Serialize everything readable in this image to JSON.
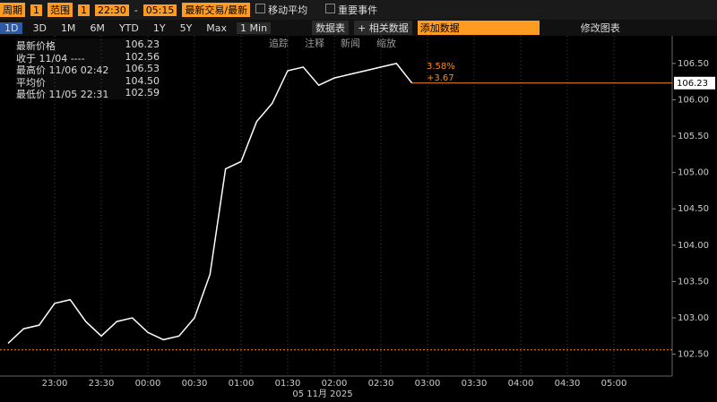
{
  "toolbar": {
    "row1": {
      "period_label": "周期",
      "period_value": "1",
      "range_label": "范围",
      "range_value": "1",
      "start": "22:30",
      "dash": "-",
      "end": "05:15",
      "mode": "最新交易/最新",
      "moving_avg": "移动平均",
      "events": "重要事件"
    },
    "row2": {
      "ranges": [
        "1D",
        "3D",
        "1M",
        "6M",
        "YTD",
        "1Y",
        "5Y",
        "Max"
      ],
      "interval": "1 Min",
      "table": "数据表",
      "related": "+ 相关数据",
      "add_data": "添加数据",
      "edit": "修改图表"
    },
    "row3": [
      "追踪",
      "注释",
      "新闻",
      "缩放"
    ]
  },
  "legend": [
    {
      "label": "最新价格",
      "value": "106.23"
    },
    {
      "label": "收于 11/04 ----",
      "value": "102.56"
    },
    {
      "label": "最高价 11/06 02:42",
      "value": "106.53"
    },
    {
      "label": "平均价",
      "value": "104.50"
    },
    {
      "label": "最低价 11/05 22:31",
      "value": "102.59"
    }
  ],
  "chart_data": {
    "type": "line",
    "x_title": "05 11月 2025",
    "categories": [
      null,
      null,
      null,
      "23:00",
      null,
      null,
      "23:30",
      null,
      null,
      "00:00",
      null,
      null,
      "00:30",
      null,
      null,
      "01:00",
      null,
      null,
      "01:30",
      null,
      null,
      "02:00",
      null,
      null,
      "02:30",
      null,
      null,
      "03:00",
      null,
      null,
      "03:30",
      null,
      null,
      "04:00",
      null,
      null,
      "04:30",
      null,
      null,
      "05:00",
      null,
      null,
      null
    ],
    "series": [
      {
        "color": "#ffffff",
        "values": [
          102.65,
          102.85,
          102.9,
          103.2,
          103.25,
          102.95,
          102.75,
          102.95,
          103.0,
          102.8,
          102.7,
          102.75,
          103.0,
          103.6,
          105.05,
          105.15,
          105.7,
          105.95,
          106.4,
          106.45,
          106.2,
          106.3,
          106.35,
          106.4,
          106.45,
          106.5,
          106.23,
          null,
          null,
          null,
          null,
          null,
          null,
          null,
          null,
          null,
          null,
          null,
          null,
          null,
          null,
          null,
          null
        ]
      }
    ],
    "ylim": [
      102.2,
      106.88
    ],
    "yticks": [
      {
        "value": 102.5,
        "label": "102.50"
      },
      {
        "value": 103,
        "label": "103.00"
      },
      {
        "value": 103.5,
        "label": "103.50"
      },
      {
        "value": 104,
        "label": "104.00"
      },
      {
        "value": 104.5,
        "label": "104.50"
      },
      {
        "value": 105,
        "label": "105.00"
      },
      {
        "value": 105.5,
        "label": "105.50"
      },
      {
        "value": 106,
        "label": "106.00"
      },
      {
        "value": 106.5,
        "label": "106.50"
      }
    ],
    "close_line": 102.56,
    "close_color": "#ff8c1a",
    "last_price": 106.23,
    "last_color": "#ff8c1a",
    "annotations": [
      "3.58%",
      "+3.67"
    ],
    "grid": true
  }
}
